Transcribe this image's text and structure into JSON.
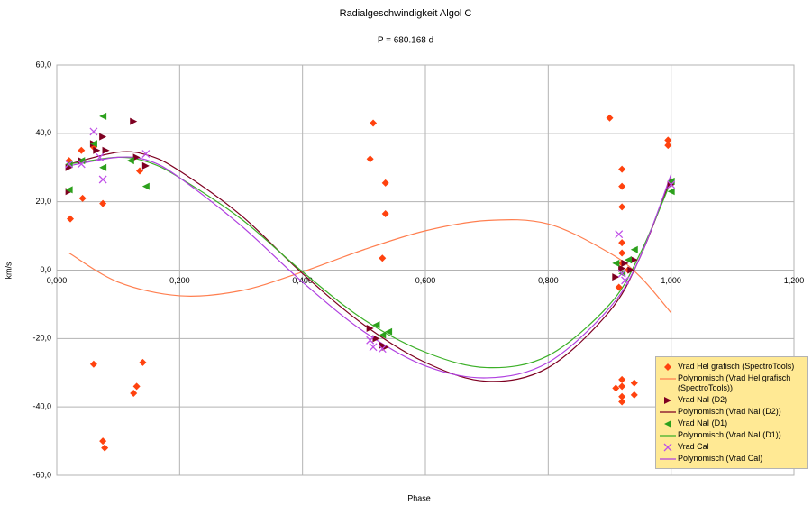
{
  "chart_data": {
    "type": "scatter",
    "title": "Radialgeschwindigkeit Algol C",
    "subtitle": "P = 680.168 d",
    "x_label": "Phase",
    "y_label": "km/s",
    "xlim": [
      0,
      1.2
    ],
    "ylim": [
      -60,
      60
    ],
    "xticks": [
      {
        "value": 0,
        "label": "0,000"
      },
      {
        "value": 0.2,
        "label": "0,200"
      },
      {
        "value": 0.4,
        "label": "0,400"
      },
      {
        "value": 0.6,
        "label": "0,600"
      },
      {
        "value": 0.8,
        "label": "0,800"
      },
      {
        "value": 1.0,
        "label": "1,000"
      },
      {
        "value": 1.2,
        "label": "1,200"
      }
    ],
    "yticks": [
      {
        "value": -60,
        "label": "-60,0"
      },
      {
        "value": -40,
        "label": "-40,0"
      },
      {
        "value": -20,
        "label": "-20,0"
      },
      {
        "value": 0,
        "label": "0,0"
      },
      {
        "value": 20,
        "label": "20,0"
      },
      {
        "value": 40,
        "label": "40,0"
      },
      {
        "value": 60,
        "label": "60,0"
      }
    ],
    "grid": true,
    "legend": "bottom-right",
    "series": [
      {
        "name": "Vrad Hel grafisch (SpectroTools)",
        "color": "#ff420e",
        "marker": "diamond",
        "x": [
          0.02,
          0.022,
          0.04,
          0.042,
          0.06,
          0.075,
          0.06,
          0.075,
          0.078,
          0.125,
          0.13,
          0.135,
          0.14,
          0.51,
          0.515,
          0.535,
          0.535,
          0.53,
          0.9,
          0.92,
          0.92,
          0.92,
          0.92,
          0.92,
          0.915,
          0.91,
          0.92,
          0.92,
          0.92,
          0.92,
          0.94,
          0.94,
          0.995,
          0.995,
          0.92,
          0.93
        ],
        "values": [
          32,
          15,
          35,
          21,
          36,
          19.5,
          -27.5,
          -50,
          -52,
          -36,
          -34,
          29,
          -27,
          32.5,
          43,
          25.5,
          16.5,
          3.5,
          44.5,
          29.5,
          24.5,
          18.5,
          8,
          5,
          -5,
          -34.5,
          -32,
          -34,
          -37,
          -38.5,
          -33,
          -36.5,
          38,
          36.5,
          2,
          0
        ]
      },
      {
        "name": "Polynomisch (Vrad Hel grafisch (SpectroTools))",
        "color": "#ff7f50",
        "marker": "line",
        "x": [
          0.02,
          0.1,
          0.2,
          0.3,
          0.4,
          0.5,
          0.6,
          0.7,
          0.8,
          0.9,
          0.95,
          1.0
        ],
        "values": [
          5,
          -3.5,
          -7.5,
          -6,
          -0.5,
          6,
          11.5,
          14.5,
          13.5,
          5,
          -2,
          -12.5
        ]
      },
      {
        "name": "Vrad NaI (D2)",
        "color": "#7e0021",
        "marker": "triangle-right",
        "x": [
          0.02,
          0.02,
          0.04,
          0.06,
          0.065,
          0.075,
          0.08,
          0.125,
          0.13,
          0.145,
          0.51,
          0.52,
          0.53,
          0.535,
          0.91,
          0.92,
          0.925,
          0.935,
          0.94,
          1.0
        ],
        "values": [
          30,
          23,
          32,
          37,
          35,
          39,
          35,
          43.5,
          33,
          30.5,
          -17,
          -20,
          -22,
          -22.5,
          -2,
          0.5,
          2,
          0,
          3,
          25
        ]
      },
      {
        "name": "Polynomisch (Vrad NaI (D2))",
        "color": "#7e0021",
        "marker": "line",
        "x": [
          0.02,
          0.1,
          0.15,
          0.2,
          0.3,
          0.4,
          0.5,
          0.6,
          0.7,
          0.8,
          0.9,
          0.95,
          1.0
        ],
        "values": [
          31,
          34.5,
          33.5,
          29,
          16,
          -1,
          -16,
          -27,
          -32.5,
          -28.5,
          -12,
          4,
          27
        ]
      },
      {
        "name": "Vrad NaI (D1)",
        "color": "#2ca01c",
        "marker": "triangle-left",
        "x": [
          0.02,
          0.02,
          0.04,
          0.06,
          0.075,
          0.075,
          0.12,
          0.145,
          0.52,
          0.53,
          0.54,
          0.91,
          0.92,
          0.93,
          0.94,
          1.0,
          1.0
        ],
        "values": [
          31,
          23.5,
          32,
          37,
          45,
          30,
          32,
          24.5,
          -16,
          -19,
          -18,
          2,
          -1,
          3,
          6,
          23,
          26
        ]
      },
      {
        "name": "Polynomisch (Vrad NaI (D1))",
        "color": "#3cb028",
        "marker": "line",
        "x": [
          0.02,
          0.1,
          0.15,
          0.2,
          0.3,
          0.4,
          0.5,
          0.6,
          0.7,
          0.8,
          0.9,
          0.95,
          1.0
        ],
        "values": [
          31,
          33,
          31.5,
          27,
          15,
          -0.5,
          -14.5,
          -24,
          -28.5,
          -25,
          -10,
          5,
          26
        ]
      },
      {
        "name": "Vrad Cal",
        "color": "#c050e8",
        "marker": "cross",
        "x": [
          0.02,
          0.04,
          0.06,
          0.075,
          0.07,
          0.145,
          0.51,
          0.515,
          0.53,
          0.915,
          0.92,
          0.925,
          1.0
        ],
        "values": [
          31,
          31,
          40.5,
          26.5,
          33,
          34,
          -20.5,
          -22.5,
          -23,
          10.5,
          -1,
          -3,
          25
        ]
      },
      {
        "name": "Polynomisch (Vrad Cal)",
        "color": "#b040e0",
        "marker": "line",
        "x": [
          0.02,
          0.1,
          0.15,
          0.2,
          0.3,
          0.4,
          0.5,
          0.6,
          0.7,
          0.8,
          0.9,
          0.95,
          1.0
        ],
        "values": [
          30.5,
          33,
          32,
          27,
          13,
          -3.5,
          -18,
          -28,
          -31.5,
          -27,
          -11,
          4,
          28
        ]
      }
    ]
  }
}
